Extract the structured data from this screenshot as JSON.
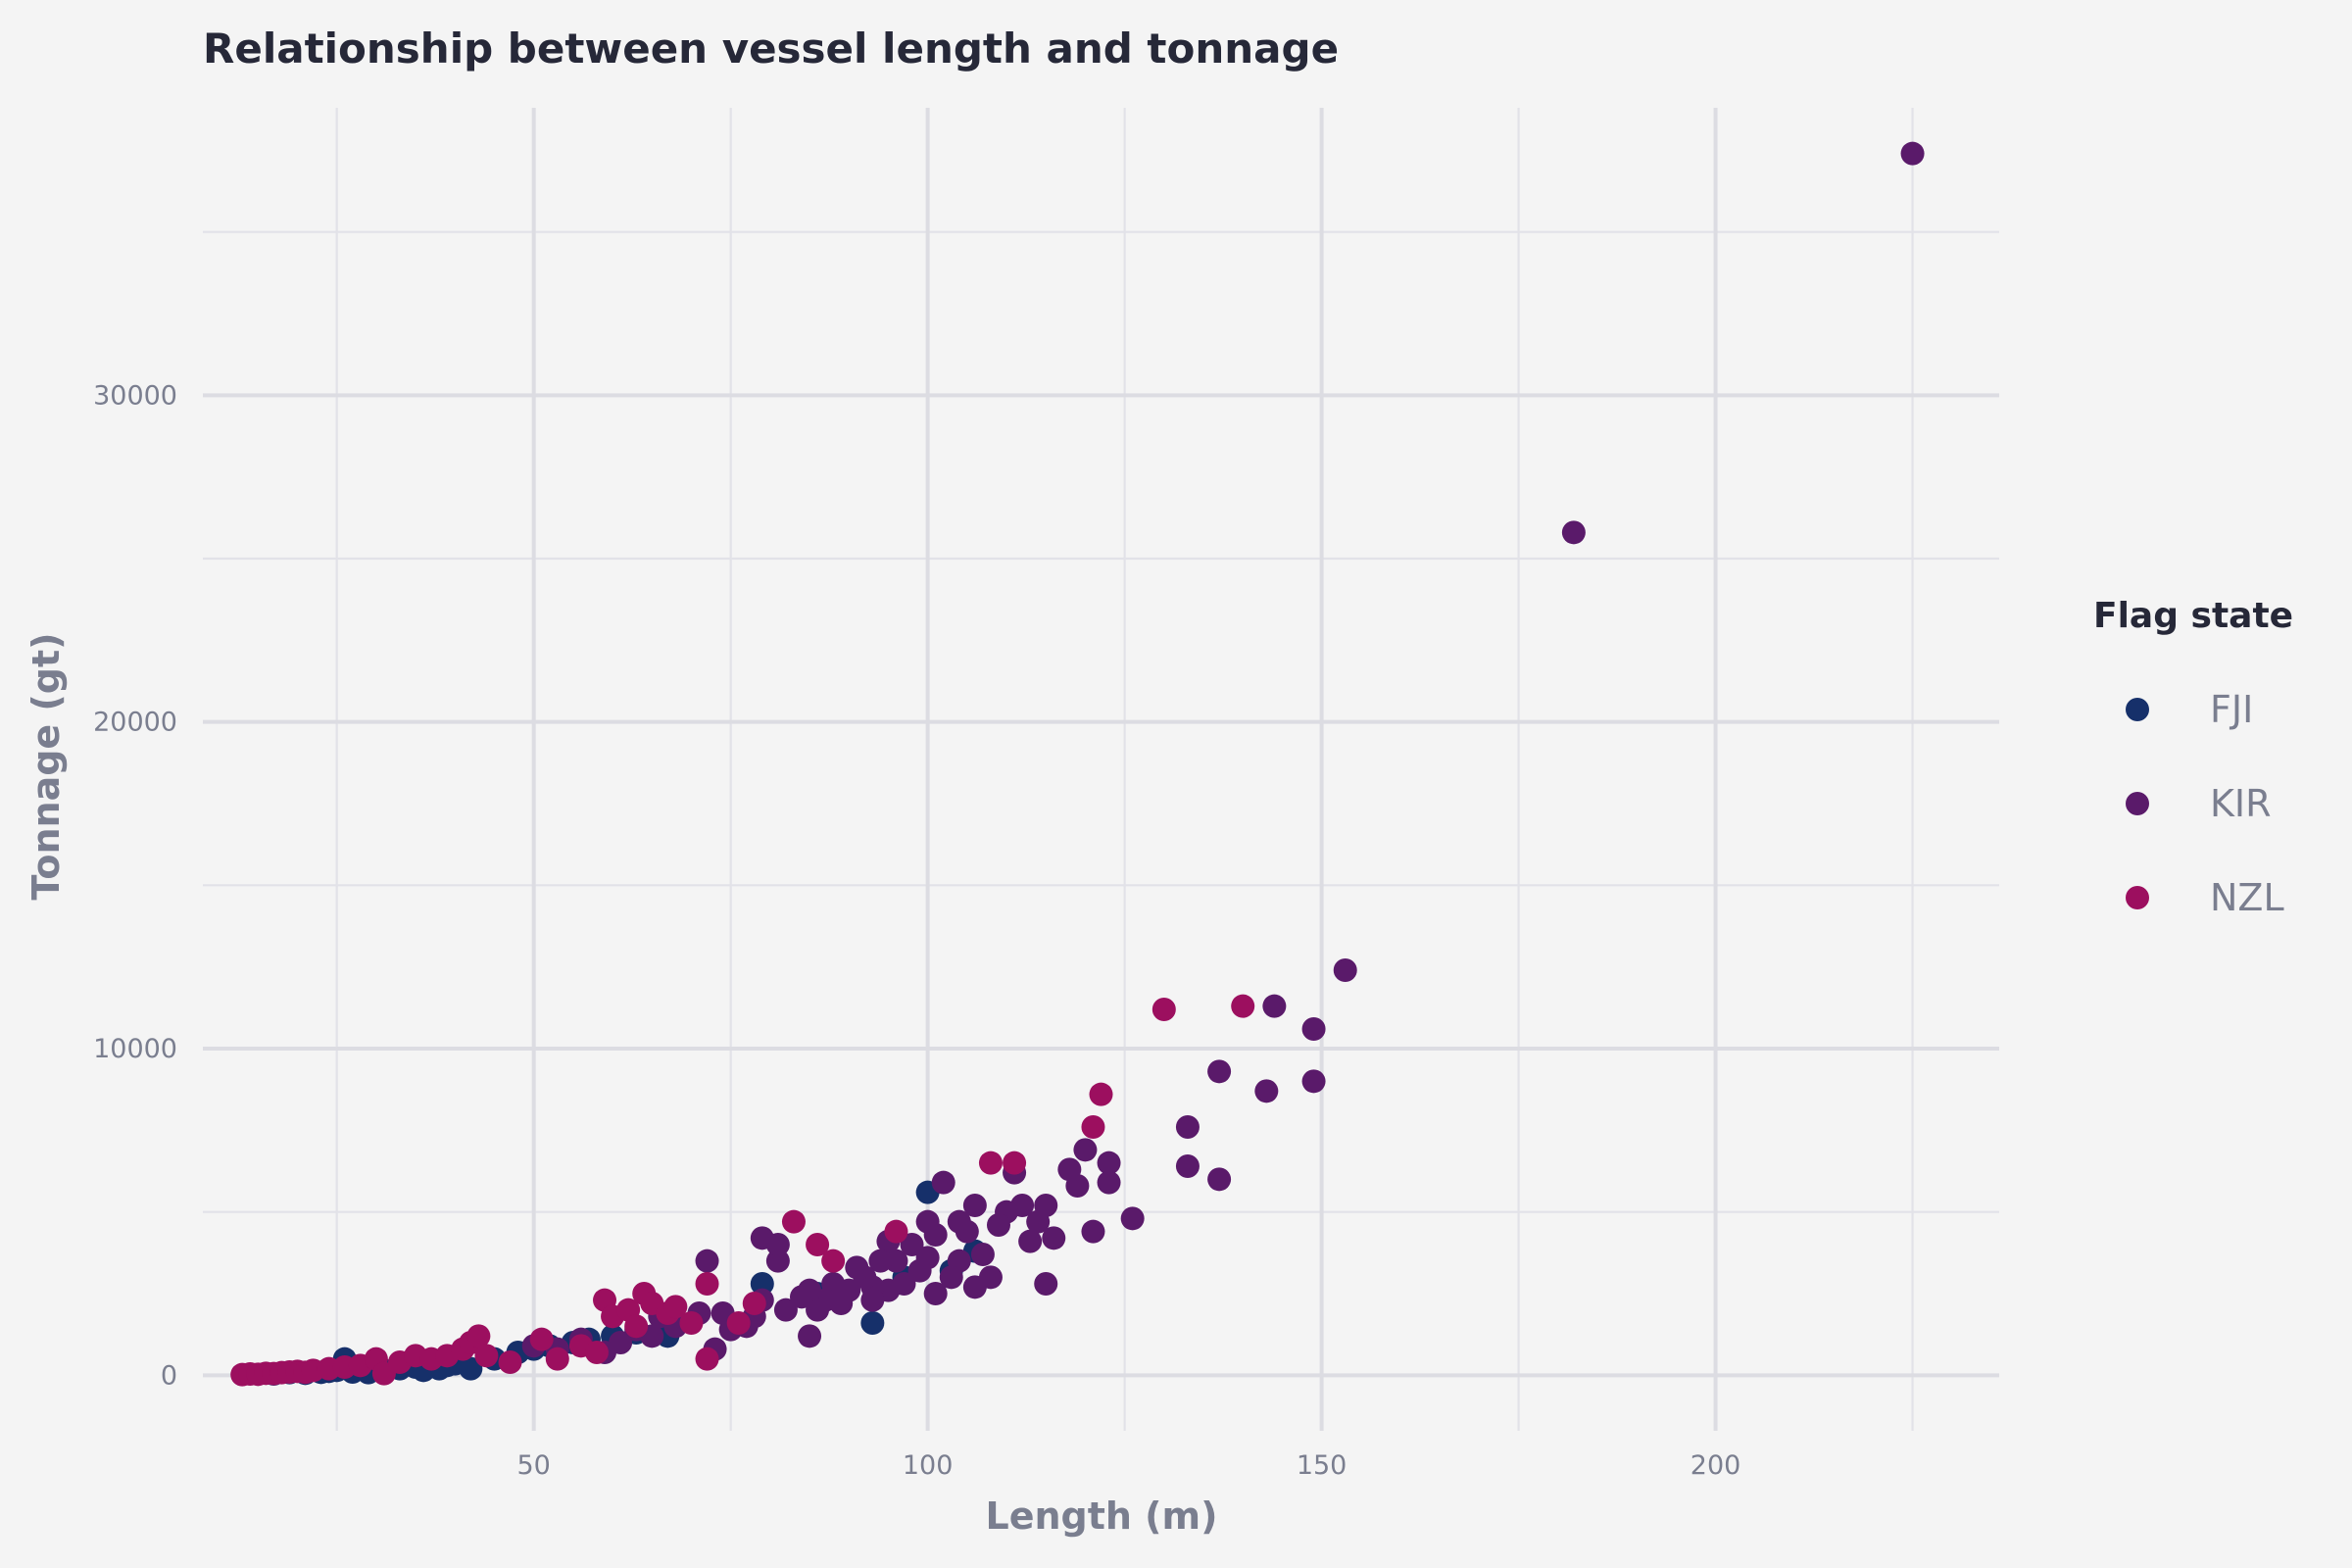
{
  "chart_data": {
    "type": "scatter",
    "title": "Relationship between vessel length and tonnage",
    "xlabel": "Length (m)",
    "ylabel": "Tonnage (gt)",
    "xlim": [
      8,
      236
    ],
    "ylim": [
      -1700,
      38800
    ],
    "x_ticks": [
      50,
      100,
      150,
      200
    ],
    "x_tick_labels": [
      "50",
      "100",
      "150",
      "200"
    ],
    "y_ticks": [
      0,
      10000,
      20000,
      30000
    ],
    "y_tick_labels": [
      "0",
      "10000",
      "20000",
      "30000"
    ],
    "grid": true,
    "legend": {
      "title": "Flag state",
      "position": "right"
    },
    "series": [
      {
        "name": "FJI",
        "color": "#16306a",
        "points": [
          [
            17,
            40
          ],
          [
            19,
            80
          ],
          [
            21,
            60
          ],
          [
            23,
            90
          ],
          [
            24,
            120
          ],
          [
            25,
            150
          ],
          [
            26,
            500
          ],
          [
            27,
            100
          ],
          [
            29,
            80
          ],
          [
            31,
            150
          ],
          [
            33,
            200
          ],
          [
            35,
            250
          ],
          [
            36,
            150
          ],
          [
            38,
            200
          ],
          [
            39,
            300
          ],
          [
            40,
            350
          ],
          [
            42,
            200
          ],
          [
            45,
            500
          ],
          [
            48,
            700
          ],
          [
            50,
            800
          ],
          [
            52,
            900
          ],
          [
            55,
            1000
          ],
          [
            57,
            1100
          ],
          [
            60,
            1200
          ],
          [
            63,
            1300
          ],
          [
            67,
            1200
          ],
          [
            79,
            2800
          ],
          [
            86,
            2500
          ],
          [
            93,
            1600
          ],
          [
            97,
            3000
          ],
          [
            100,
            5600
          ],
          [
            103,
            3200
          ],
          [
            106,
            3800
          ]
        ]
      },
      {
        "name": "KIR",
        "color": "#5a1a6a",
        "points": [
          [
            225,
            37400
          ],
          [
            182,
            25800
          ],
          [
            153,
            12400
          ],
          [
            149,
            10600
          ],
          [
            144,
            11300
          ],
          [
            149,
            9000
          ],
          [
            143,
            8700
          ],
          [
            137,
            9300
          ],
          [
            133,
            7600
          ],
          [
            133,
            6400
          ],
          [
            137,
            6000
          ],
          [
            126,
            4800
          ],
          [
            123,
            6500
          ],
          [
            123,
            5900
          ],
          [
            120,
            6900
          ],
          [
            119,
            5800
          ],
          [
            118,
            6300
          ],
          [
            121,
            4400
          ],
          [
            116,
            4200
          ],
          [
            115,
            5200
          ],
          [
            115,
            2800
          ],
          [
            114,
            4700
          ],
          [
            113,
            4100
          ],
          [
            112,
            5200
          ],
          [
            111,
            6200
          ],
          [
            110,
            5000
          ],
          [
            109,
            4600
          ],
          [
            108,
            3000
          ],
          [
            107,
            3700
          ],
          [
            106,
            5200
          ],
          [
            106,
            2700
          ],
          [
            105,
            4400
          ],
          [
            104,
            4700
          ],
          [
            104,
            3500
          ],
          [
            103,
            3000
          ],
          [
            102,
            5900
          ],
          [
            101,
            4300
          ],
          [
            101,
            2500
          ],
          [
            100,
            4700
          ],
          [
            100,
            3600
          ],
          [
            99,
            3200
          ],
          [
            98,
            4000
          ],
          [
            97,
            2800
          ],
          [
            96,
            3500
          ],
          [
            95,
            4100
          ],
          [
            95,
            2600
          ],
          [
            94,
            3500
          ],
          [
            93,
            2700
          ],
          [
            93,
            2300
          ],
          [
            92,
            3000
          ],
          [
            91,
            3300
          ],
          [
            90,
            2600
          ],
          [
            89,
            2200
          ],
          [
            88,
            2800
          ],
          [
            87,
            2300
          ],
          [
            86,
            2000
          ],
          [
            85,
            1200
          ],
          [
            85,
            2600
          ],
          [
            84,
            2400
          ],
          [
            82,
            2000
          ],
          [
            81,
            3500
          ],
          [
            81,
            4000
          ],
          [
            79,
            4200
          ],
          [
            79,
            2300
          ],
          [
            78,
            1800
          ],
          [
            77,
            1500
          ],
          [
            75,
            1400
          ],
          [
            74,
            1900
          ],
          [
            73,
            800
          ],
          [
            72,
            3500
          ],
          [
            71,
            1900
          ],
          [
            68,
            1500
          ],
          [
            66,
            1800
          ],
          [
            65,
            1200
          ],
          [
            63,
            1400
          ],
          [
            61,
            1000
          ],
          [
            59,
            700
          ],
          [
            56,
            1100
          ],
          [
            53,
            800
          ],
          [
            50,
            900
          ]
        ]
      },
      {
        "name": "NZL",
        "color": "#9c0f5f",
        "points": [
          [
            13,
            20
          ],
          [
            14,
            40
          ],
          [
            15,
            30
          ],
          [
            16,
            60
          ],
          [
            17,
            50
          ],
          [
            18,
            80
          ],
          [
            19,
            100
          ],
          [
            20,
            120
          ],
          [
            21,
            90
          ],
          [
            22,
            150
          ],
          [
            24,
            200
          ],
          [
            26,
            250
          ],
          [
            28,
            300
          ],
          [
            30,
            500
          ],
          [
            31,
            50
          ],
          [
            33,
            400
          ],
          [
            35,
            600
          ],
          [
            37,
            500
          ],
          [
            39,
            600
          ],
          [
            41,
            800
          ],
          [
            42,
            1000
          ],
          [
            43,
            1200
          ],
          [
            44,
            600
          ],
          [
            47,
            400
          ],
          [
            51,
            1100
          ],
          [
            53,
            500
          ],
          [
            56,
            900
          ],
          [
            58,
            700
          ],
          [
            59,
            2300
          ],
          [
            60,
            1800
          ],
          [
            62,
            2000
          ],
          [
            63,
            1500
          ],
          [
            64,
            2500
          ],
          [
            65,
            2200
          ],
          [
            67,
            1900
          ],
          [
            68,
            2100
          ],
          [
            70,
            1600
          ],
          [
            72,
            2800
          ],
          [
            72,
            500
          ],
          [
            76,
            1600
          ],
          [
            78,
            2200
          ],
          [
            83,
            4700
          ],
          [
            86,
            4000
          ],
          [
            88,
            3500
          ],
          [
            96,
            4400
          ],
          [
            108,
            6500
          ],
          [
            111,
            6500
          ],
          [
            121,
            7600
          ],
          [
            122,
            8600
          ],
          [
            130,
            11200
          ],
          [
            140,
            11300
          ]
        ]
      }
    ]
  }
}
